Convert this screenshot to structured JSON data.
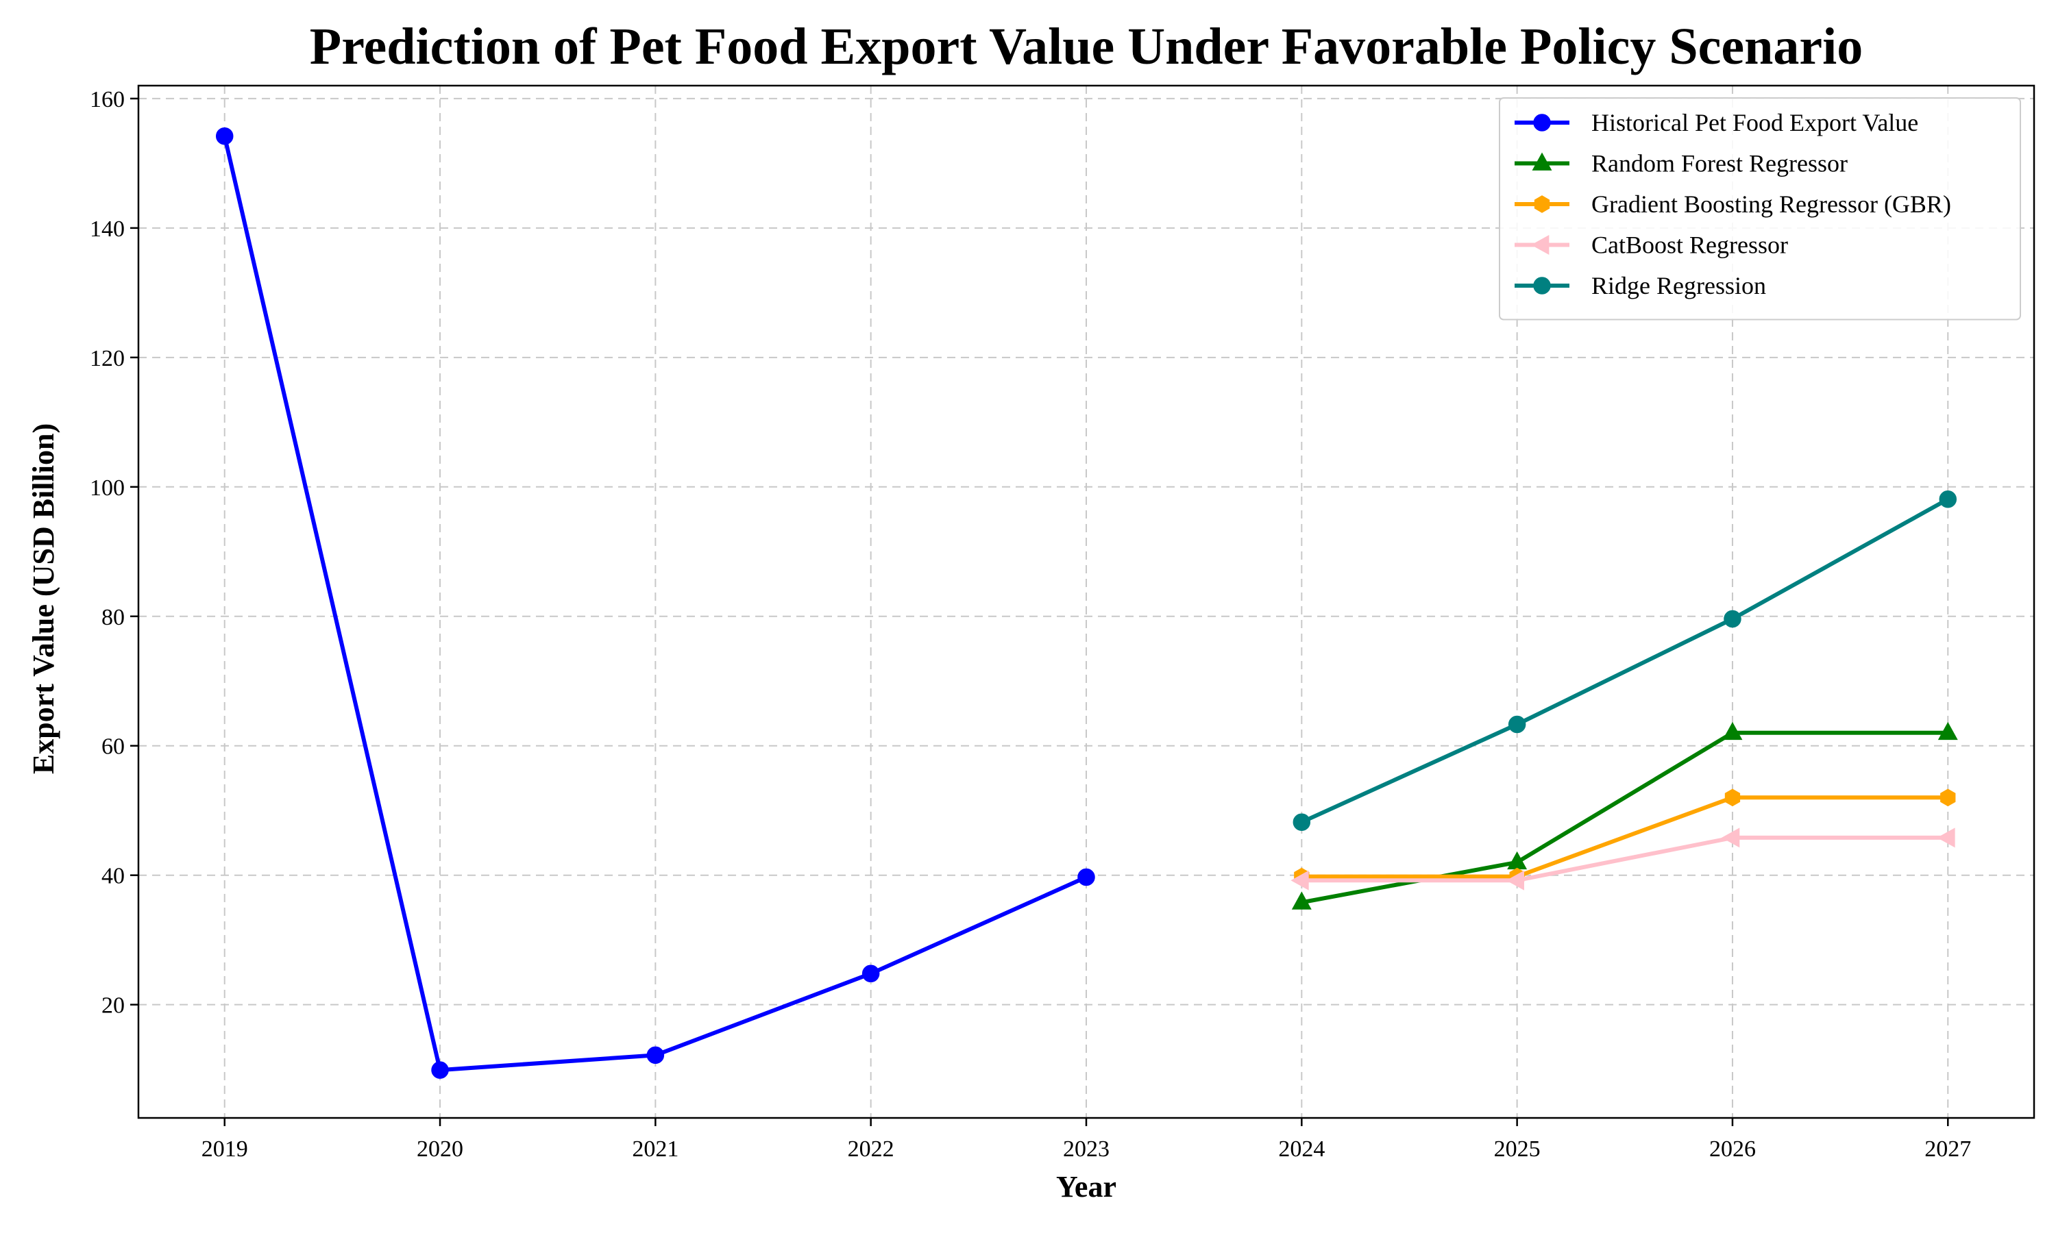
{
  "chart_data": {
    "type": "line",
    "title": "Prediction of Pet Food Export Value Under Favorable Policy Scenario",
    "xlabel": "Year",
    "ylabel": "Export Value (USD Billion)",
    "xlim": [
      2018.6,
      2027.4
    ],
    "ylim": [
      2.5,
      162
    ],
    "xticks": [
      "2019",
      "2020",
      "2021",
      "2022",
      "2023",
      "2024",
      "2025",
      "2026",
      "2027"
    ],
    "yticks": [
      20,
      40,
      60,
      80,
      100,
      120,
      140,
      160
    ],
    "grid": true,
    "legend_position": "top-right",
    "series": [
      {
        "name": "Historical Pet Food Export Value",
        "color": "#0000ff",
        "marker": "circle",
        "x": [
          2019,
          2020,
          2021,
          2022,
          2023
        ],
        "y": [
          154.2,
          9.9,
          12.2,
          24.8,
          39.7
        ]
      },
      {
        "name": "Random Forest Regressor",
        "color": "#008000",
        "marker": "triangle-up",
        "x": [
          2024,
          2025,
          2026,
          2027
        ],
        "y": [
          35.8,
          42.0,
          62.0,
          62.0
        ]
      },
      {
        "name": "Gradient Boosting Regressor (GBR)",
        "color": "#ffa500",
        "marker": "hexagon",
        "x": [
          2024,
          2025,
          2026,
          2027
        ],
        "y": [
          39.8,
          39.8,
          52.0,
          52.0
        ]
      },
      {
        "name": "CatBoost Regressor",
        "color": "#ffc0cb",
        "marker": "triangle-left",
        "x": [
          2024,
          2025,
          2026,
          2027
        ],
        "y": [
          39.2,
          39.2,
          45.8,
          45.8
        ]
      },
      {
        "name": "Ridge Regression",
        "color": "#008080",
        "marker": "circle",
        "x": [
          2024,
          2025,
          2026,
          2027
        ],
        "y": [
          48.2,
          63.3,
          79.6,
          98.1
        ]
      }
    ]
  }
}
